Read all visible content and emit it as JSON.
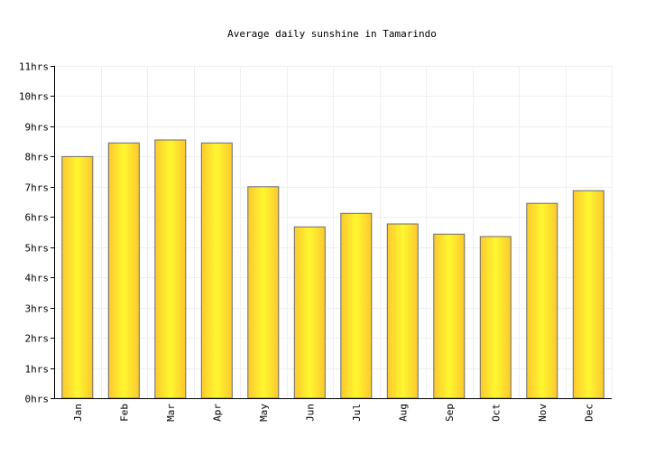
{
  "chart_data": {
    "type": "bar",
    "title": "Average daily sunshine in Tamarindo",
    "xlabel": "",
    "ylabel": "",
    "categories": [
      "Jan",
      "Feb",
      "Mar",
      "Apr",
      "May",
      "Jun",
      "Jul",
      "Aug",
      "Sep",
      "Oct",
      "Nov",
      "Dec"
    ],
    "values": [
      8.0,
      8.45,
      8.55,
      8.45,
      7.0,
      5.67,
      6.12,
      5.77,
      5.43,
      5.35,
      6.45,
      6.87
    ],
    "ylim": [
      0,
      11
    ],
    "yticks": [
      "0hrs",
      "1hrs",
      "2hrs",
      "3hrs",
      "4hrs",
      "5hrs",
      "6hrs",
      "7hrs",
      "8hrs",
      "9hrs",
      "10hrs",
      "11hrs"
    ],
    "grid": true,
    "legend": "none",
    "colors": {
      "bar_light": "#fff72f",
      "bar_dark": "#fbc82f",
      "bar_stroke": "#6b6b6b",
      "grid": "#efefef",
      "axis": "#000000"
    }
  }
}
